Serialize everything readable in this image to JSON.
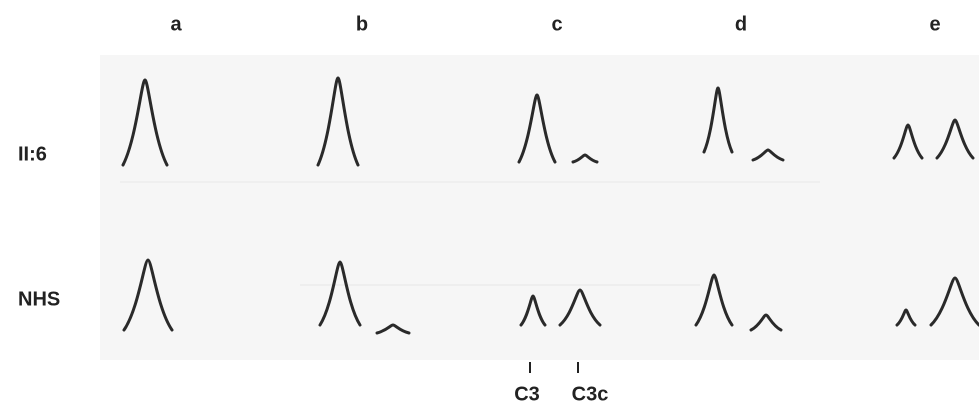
{
  "columns": [
    "a",
    "b",
    "c",
    "d",
    "e"
  ],
  "rows": [
    "II:6",
    "NHS"
  ],
  "markers": [
    "C3",
    "C3c"
  ]
}
